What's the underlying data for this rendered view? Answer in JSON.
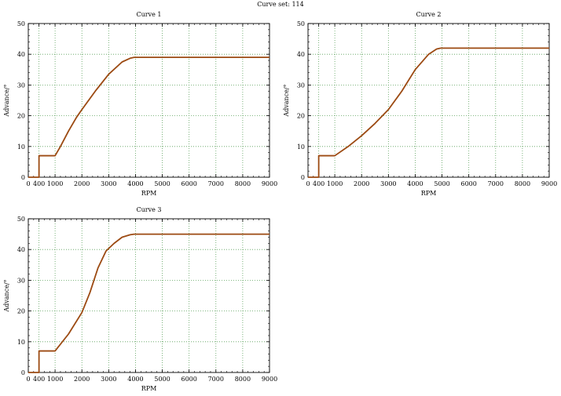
{
  "figure": {
    "suptitle": "Curve set: 114"
  },
  "style": {
    "line_color": "#9c4a12",
    "grid_color": "#5aa05a",
    "axis_color": "#000000"
  },
  "chart_data": [
    {
      "type": "line",
      "title": "Curve 1",
      "xlabel": "RPM",
      "ylabel": "Advance/°",
      "xlim": [
        0,
        9000
      ],
      "ylim": [
        0,
        50
      ],
      "xticks": [
        0,
        400,
        1000,
        2000,
        3000,
        4000,
        5000,
        6000,
        7000,
        8000,
        9000
      ],
      "yticks": [
        0,
        10,
        20,
        30,
        40,
        50
      ],
      "grid": true,
      "series": [
        {
          "x": [
            0,
            400,
            400,
            1000,
            1200,
            1500,
            1800,
            2000,
            2500,
            3000,
            3500,
            3800,
            3950,
            4200,
            5000,
            6000,
            7000,
            8000,
            9000
          ],
          "y": [
            0,
            0,
            7,
            7,
            10,
            15,
            19.5,
            22,
            28,
            33.5,
            37.5,
            38.7,
            39,
            39,
            39,
            39,
            39,
            39,
            39
          ]
        }
      ]
    },
    {
      "type": "line",
      "title": "Curve 2",
      "xlabel": "RPM",
      "ylabel": "Advance/°",
      "xlim": [
        0,
        9000
      ],
      "ylim": [
        0,
        50
      ],
      "xticks": [
        0,
        400,
        1000,
        2000,
        3000,
        4000,
        5000,
        6000,
        7000,
        8000,
        9000
      ],
      "yticks": [
        0,
        10,
        20,
        30,
        40,
        50
      ],
      "grid": true,
      "series": [
        {
          "x": [
            0,
            400,
            400,
            1000,
            1500,
            2000,
            2500,
            3000,
            3500,
            4000,
            4500,
            4800,
            4950,
            5200,
            6000,
            7000,
            8000,
            9000
          ],
          "y": [
            0,
            0,
            7,
            7,
            10,
            13.5,
            17.5,
            22,
            28,
            35,
            40,
            41.7,
            42,
            42,
            42,
            42,
            42,
            42
          ]
        }
      ]
    },
    {
      "type": "line",
      "title": "Curve 3",
      "xlabel": "RPM",
      "ylabel": "Advance/°",
      "xlim": [
        0,
        9000
      ],
      "ylim": [
        0,
        50
      ],
      "xticks": [
        0,
        400,
        1000,
        2000,
        3000,
        4000,
        5000,
        6000,
        7000,
        8000,
        9000
      ],
      "yticks": [
        0,
        10,
        20,
        30,
        40,
        50
      ],
      "grid": true,
      "series": [
        {
          "x": [
            0,
            400,
            400,
            1000,
            1500,
            2000,
            2300,
            2600,
            2900,
            3200,
            3500,
            3800,
            3950,
            4200,
            5000,
            6000,
            7000,
            8000,
            9000
          ],
          "y": [
            0,
            0,
            7,
            7,
            12.5,
            19.5,
            26,
            34,
            39.5,
            42,
            44,
            44.8,
            45,
            45,
            45,
            45,
            45,
            45,
            45
          ]
        }
      ]
    }
  ]
}
